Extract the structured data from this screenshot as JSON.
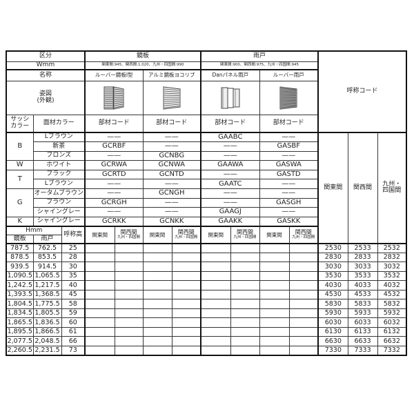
{
  "header": {
    "kubun": "区分",
    "wmm": "Wmm",
    "name": "名称",
    "figure": "姿図\n(外観)",
    "sash_color": "サッシ\nカラー",
    "face_color": "面材カラー",
    "call_code": "呼称コード"
  },
  "groups": [
    {
      "label": "鏡板",
      "width": "関東間:945、関西間:1,020、九州・四国間:990"
    },
    {
      "label": "雨戸",
      "width": "関東間:900、関西間:975、九州・四国間:945"
    }
  ],
  "products": [
    {
      "name": "ルーバー鏡板I型",
      "icon": "louver-panel-icon",
      "code_label": "部材コード",
      "codes": [
        "——",
        "GCRBF",
        "——",
        "GCRWA",
        "GCRTD",
        "——",
        "——",
        "GCRGH",
        "——",
        "GCRKK"
      ]
    },
    {
      "name": "アルミ鏡板ヨコリブ",
      "icon": "horizontal-rib-panel-icon",
      "code_label": "部材コード",
      "codes": [
        "——",
        "——",
        "GCNBG",
        "GCNWA",
        "GCNTD",
        "——",
        "GCNGH",
        "——",
        "——",
        "GCNKK"
      ]
    },
    {
      "name": "Danパネル雨戸",
      "icon": "dan-panel-shutter-icon",
      "code_label": "部材コード",
      "codes": [
        "GAABC",
        "——",
        "——",
        "GAAWA",
        "——",
        "GAATC",
        "——",
        "——",
        "GAAGJ",
        "GAAKK"
      ]
    },
    {
      "name": "ルーバー雨戸",
      "icon": "louver-shutter-icon",
      "code_label": "部材コード",
      "codes": [
        "——",
        "GASBF",
        "——",
        "GASWA",
        "GASTD",
        "——",
        "——",
        "GASGH",
        "——",
        "GASKK"
      ]
    }
  ],
  "sash_groups": [
    {
      "sash": "B",
      "faces": [
        "Lブラウン",
        "新茶",
        "ブロンズ"
      ]
    },
    {
      "sash": "W",
      "faces": [
        "ホワイト"
      ]
    },
    {
      "sash": "T",
      "faces": [
        "ブラック",
        "Lブラウン"
      ]
    },
    {
      "sash": "G",
      "faces": [
        "オータムブラウン",
        "ブラウン",
        "シャイングレー"
      ]
    },
    {
      "sash": "K",
      "faces": [
        "シャイングレー"
      ]
    }
  ],
  "regions": [
    "関東間",
    "関西間",
    "九州・\n四国間"
  ],
  "size_header": {
    "hmm": "Hmm",
    "panel": "鏡板",
    "shutter": "雨戸",
    "call_height": "呼称高",
    "kanto": "関東間",
    "kansai": "関西間",
    "kyushu": "九州・四国間"
  },
  "rows": [
    {
      "panel": "787.5",
      "shutter": "762.5",
      "h": "25",
      "codes": [
        "2530",
        "2533",
        "2532"
      ]
    },
    {
      "panel": "878.5",
      "shutter": "853.5",
      "h": "28",
      "codes": [
        "2830",
        "2833",
        "2832"
      ]
    },
    {
      "panel": "939.5",
      "shutter": "914.5",
      "h": "30",
      "codes": [
        "3030",
        "3033",
        "3032"
      ]
    },
    {
      "panel": "1,090.5",
      "shutter": "1,065.5",
      "h": "35",
      "codes": [
        "3530",
        "3533",
        "3532"
      ]
    },
    {
      "panel": "1,242.5",
      "shutter": "1,217.5",
      "h": "40",
      "codes": [
        "4030",
        "4033",
        "4032"
      ]
    },
    {
      "panel": "1,393.5",
      "shutter": "1,368.5",
      "h": "45",
      "codes": [
        "4530",
        "4533",
        "4532"
      ]
    },
    {
      "panel": "1,804.5",
      "shutter": "1,775.5",
      "h": "58",
      "codes": [
        "5830",
        "5833",
        "5832"
      ]
    },
    {
      "panel": "1,834.5",
      "shutter": "1,805.5",
      "h": "59",
      "codes": [
        "5930",
        "5933",
        "5932"
      ]
    },
    {
      "panel": "1,865.5",
      "shutter": "1,836.5",
      "h": "60",
      "codes": [
        "6030",
        "6033",
        "6032"
      ]
    },
    {
      "panel": "1,895.5",
      "shutter": "1,866.5",
      "h": "61",
      "codes": [
        "6130",
        "6133",
        "6132"
      ]
    },
    {
      "panel": "2,077.5",
      "shutter": "2,048.5",
      "h": "66",
      "codes": [
        "6630",
        "6633",
        "6632"
      ]
    },
    {
      "panel": "2,260.5",
      "shutter": "2,231.5",
      "h": "73",
      "codes": [
        "7330",
        "7333",
        "7332"
      ]
    }
  ]
}
